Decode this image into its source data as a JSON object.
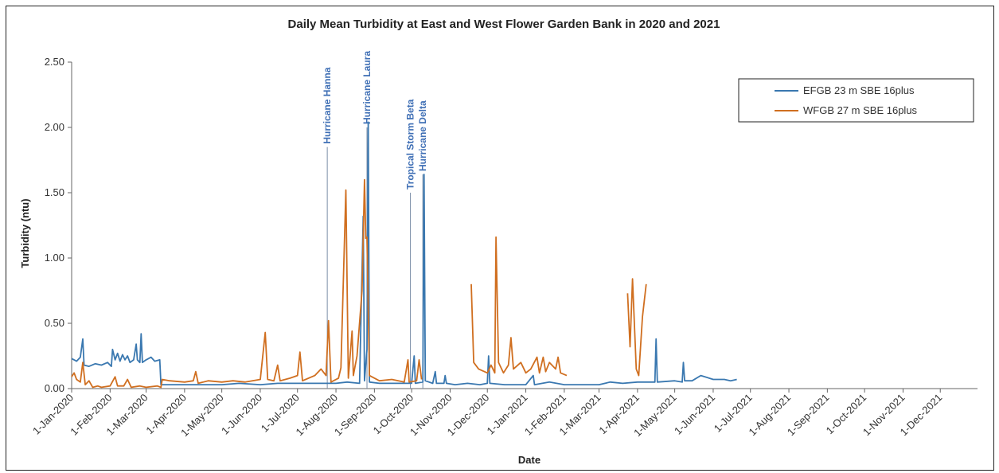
{
  "chart_data": {
    "type": "line",
    "title": "Daily Mean Turbidity at East and West Flower Garden Bank in 2020 and 2021",
    "xlabel": "Date",
    "ylabel": "Turbidity (ntu)",
    "ylim": [
      0,
      2.5
    ],
    "yticks": [
      "0.00",
      "0.50",
      "1.00",
      "1.50",
      "2.00",
      "2.50"
    ],
    "xlim": [
      "2020-01-01",
      "2021-12-31"
    ],
    "xticks": [
      {
        "date": "2020-01-01",
        "label": "1-Jan-2020"
      },
      {
        "date": "2020-02-01",
        "label": "1-Feb-2020"
      },
      {
        "date": "2020-03-01",
        "label": "1-Mar-2020"
      },
      {
        "date": "2020-04-01",
        "label": "1-Apr-2020"
      },
      {
        "date": "2020-05-01",
        "label": "1-May-2020"
      },
      {
        "date": "2020-06-01",
        "label": "1-Jun-2020"
      },
      {
        "date": "2020-07-01",
        "label": "1-Jul-2020"
      },
      {
        "date": "2020-08-01",
        "label": "1-Aug-2020"
      },
      {
        "date": "2020-09-01",
        "label": "1-Sep-2020"
      },
      {
        "date": "2020-10-01",
        "label": "1-Oct-2020"
      },
      {
        "date": "2020-11-01",
        "label": "1-Nov-2020"
      },
      {
        "date": "2020-12-01",
        "label": "1-Dec-2020"
      },
      {
        "date": "2021-01-01",
        "label": "1-Jan-2021"
      },
      {
        "date": "2021-02-01",
        "label": "1-Feb-2021"
      },
      {
        "date": "2021-03-01",
        "label": "1-Mar-2021"
      },
      {
        "date": "2021-04-01",
        "label": "1-Apr-2021"
      },
      {
        "date": "2021-05-01",
        "label": "1-May-2021"
      },
      {
        "date": "2021-06-01",
        "label": "1-Jun-2021"
      },
      {
        "date": "2021-07-01",
        "label": "1-Jul-2021"
      },
      {
        "date": "2021-08-01",
        "label": "1-Aug-2021"
      },
      {
        "date": "2021-09-01",
        "label": "1-Sep-2021"
      },
      {
        "date": "2021-10-01",
        "label": "1-Oct-2021"
      },
      {
        "date": "2021-11-01",
        "label": "1-Nov-2021"
      },
      {
        "date": "2021-12-01",
        "label": "1-Dec-2021"
      }
    ],
    "grid": false,
    "legend_position": "top-right",
    "series": [
      {
        "name": "EFGB 23 m SBE 16plus",
        "color": "#3a78b0",
        "points": [
          [
            "2020-01-01",
            0.23
          ],
          [
            "2020-01-05",
            0.21
          ],
          [
            "2020-01-08",
            0.24
          ],
          [
            "2020-01-10",
            0.38
          ],
          [
            "2020-01-11",
            0.18
          ],
          [
            "2020-01-15",
            0.17
          ],
          [
            "2020-01-20",
            0.19
          ],
          [
            "2020-01-25",
            0.18
          ],
          [
            "2020-01-30",
            0.2
          ],
          [
            "2020-02-02",
            0.17
          ],
          [
            "2020-02-03",
            0.3
          ],
          [
            "2020-02-05",
            0.22
          ],
          [
            "2020-02-07",
            0.27
          ],
          [
            "2020-02-09",
            0.21
          ],
          [
            "2020-02-11",
            0.26
          ],
          [
            "2020-02-13",
            0.22
          ],
          [
            "2020-02-15",
            0.25
          ],
          [
            "2020-02-17",
            0.2
          ],
          [
            "2020-02-20",
            0.22
          ],
          [
            "2020-02-22",
            0.34
          ],
          [
            "2020-02-23",
            0.22
          ],
          [
            "2020-02-25",
            0.2
          ],
          [
            "2020-02-26",
            0.42
          ],
          [
            "2020-02-27",
            0.2
          ],
          [
            "2020-03-01",
            0.22
          ],
          [
            "2020-03-05",
            0.24
          ],
          [
            "2020-03-08",
            0.21
          ],
          [
            "2020-03-12",
            0.22
          ],
          [
            "2020-03-13",
            0.03
          ],
          [
            "2020-03-20",
            0.03
          ],
          [
            "2020-04-01",
            0.03
          ],
          [
            "2020-04-15",
            0.03
          ],
          [
            "2020-05-01",
            0.03
          ],
          [
            "2020-05-15",
            0.04
          ],
          [
            "2020-06-01",
            0.03
          ],
          [
            "2020-06-15",
            0.04
          ],
          [
            "2020-07-01",
            0.04
          ],
          [
            "2020-07-15",
            0.04
          ],
          [
            "2020-07-25",
            0.04
          ],
          [
            "2020-08-01",
            0.04
          ],
          [
            "2020-08-10",
            0.05
          ],
          [
            "2020-08-20",
            0.04
          ],
          [
            "2020-08-23",
            1.32
          ],
          [
            "2020-08-24",
            0.06
          ],
          [
            "2020-08-26",
            0.3
          ],
          [
            "2020-08-27",
            2.04
          ],
          [
            "2020-08-28",
            0.05
          ],
          [
            "2020-09-05",
            0.04
          ],
          [
            "2020-09-15",
            0.04
          ],
          [
            "2020-09-25",
            0.04
          ],
          [
            "2020-10-01",
            0.04
          ],
          [
            "2020-10-03",
            0.25
          ],
          [
            "2020-10-04",
            0.04
          ],
          [
            "2020-10-10",
            0.05
          ],
          [
            "2020-10-11",
            1.64
          ],
          [
            "2020-10-12",
            0.06
          ],
          [
            "2020-10-18",
            0.04
          ],
          [
            "2020-10-20",
            0.13
          ],
          [
            "2020-10-21",
            0.04
          ],
          [
            "2020-10-27",
            0.04
          ],
          [
            "2020-10-28",
            0.1
          ],
          [
            "2020-10-29",
            0.04
          ],
          [
            "2020-11-05",
            0.03
          ],
          [
            "2020-11-15",
            0.04
          ],
          [
            "2020-11-25",
            0.03
          ],
          [
            "2020-12-01",
            0.04
          ],
          [
            "2020-12-02",
            0.25
          ],
          [
            "2020-12-03",
            0.04
          ],
          [
            "2020-12-15",
            0.03
          ],
          [
            "2021-01-01",
            0.03
          ],
          [
            "2021-01-07",
            0.1
          ],
          [
            "2021-01-08",
            0.03
          ],
          [
            "2021-01-20",
            0.05
          ],
          [
            "2021-02-01",
            0.03
          ],
          [
            "2021-02-15",
            0.03
          ],
          [
            "2021-03-01",
            0.03
          ],
          [
            "2021-03-10",
            0.05
          ],
          [
            "2021-03-20",
            0.04
          ],
          [
            "2021-04-01",
            0.05
          ],
          [
            "2021-04-10",
            0.05
          ],
          [
            "2021-04-15",
            0.05
          ],
          [
            "2021-04-16",
            0.38
          ],
          [
            "2021-04-17",
            0.05
          ],
          [
            "2021-05-01",
            0.06
          ],
          [
            "2021-05-07",
            0.05
          ],
          [
            "2021-05-08",
            0.2
          ],
          [
            "2021-05-09",
            0.06
          ],
          [
            "2021-05-15",
            0.06
          ],
          [
            "2021-05-22",
            0.1
          ],
          [
            "2021-06-01",
            0.07
          ],
          [
            "2021-06-10",
            0.07
          ],
          [
            "2021-06-15",
            0.06
          ],
          [
            "2021-06-20",
            0.07
          ]
        ]
      },
      {
        "name": "WFGB 27 m SBE 16plus",
        "color": "#d06f20",
        "segments": [
          [
            [
              "2020-01-01",
              0.09
            ],
            [
              "2020-01-03",
              0.12
            ],
            [
              "2020-01-05",
              0.07
            ],
            [
              "2020-01-08",
              0.05
            ],
            [
              "2020-01-10",
              0.2
            ],
            [
              "2020-01-12",
              0.03
            ],
            [
              "2020-01-15",
              0.06
            ],
            [
              "2020-01-18",
              0.01
            ],
            [
              "2020-01-22",
              0.02
            ],
            [
              "2020-01-25",
              0.01
            ],
            [
              "2020-02-01",
              0.02
            ],
            [
              "2020-02-05",
              0.09
            ],
            [
              "2020-02-07",
              0.02
            ],
            [
              "2020-02-12",
              0.02
            ],
            [
              "2020-02-15",
              0.07
            ],
            [
              "2020-02-18",
              0.01
            ],
            [
              "2020-02-25",
              0.02
            ],
            [
              "2020-03-01",
              0.01
            ],
            [
              "2020-03-10",
              0.02
            ],
            [
              "2020-03-13",
              0.01
            ],
            [
              "2020-03-14",
              0.07
            ],
            [
              "2020-03-20",
              0.06
            ],
            [
              "2020-04-01",
              0.05
            ],
            [
              "2020-04-08",
              0.06
            ],
            [
              "2020-04-10",
              0.13
            ],
            [
              "2020-04-12",
              0.04
            ],
            [
              "2020-04-20",
              0.06
            ],
            [
              "2020-05-01",
              0.05
            ],
            [
              "2020-05-10",
              0.06
            ],
            [
              "2020-05-20",
              0.05
            ],
            [
              "2020-06-01",
              0.07
            ],
            [
              "2020-06-05",
              0.43
            ],
            [
              "2020-06-07",
              0.07
            ],
            [
              "2020-06-12",
              0.06
            ],
            [
              "2020-06-15",
              0.18
            ],
            [
              "2020-06-17",
              0.06
            ],
            [
              "2020-06-25",
              0.08
            ],
            [
              "2020-07-01",
              0.1
            ],
            [
              "2020-07-03",
              0.28
            ],
            [
              "2020-07-05",
              0.06
            ],
            [
              "2020-07-15",
              0.1
            ],
            [
              "2020-07-20",
              0.15
            ],
            [
              "2020-07-24",
              0.1
            ],
            [
              "2020-07-26",
              0.52
            ],
            [
              "2020-07-28",
              0.05
            ],
            [
              "2020-08-03",
              0.08
            ],
            [
              "2020-08-05",
              0.16
            ],
            [
              "2020-08-09",
              1.52
            ],
            [
              "2020-08-11",
              0.08
            ],
            [
              "2020-08-14",
              0.44
            ],
            [
              "2020-08-15",
              0.1
            ],
            [
              "2020-08-18",
              0.25
            ],
            [
              "2020-08-22",
              0.75
            ],
            [
              "2020-08-24",
              1.6
            ],
            [
              "2020-08-25",
              1.15
            ],
            [
              "2020-08-26",
              1.16
            ],
            [
              "2020-08-28",
              0.1
            ],
            [
              "2020-09-05",
              0.06
            ],
            [
              "2020-09-15",
              0.07
            ],
            [
              "2020-09-25",
              0.05
            ],
            [
              "2020-09-28",
              0.22
            ],
            [
              "2020-09-29",
              0.05
            ],
            [
              "2020-10-05",
              0.06
            ],
            [
              "2020-10-07",
              0.22
            ],
            [
              "2020-10-09",
              0.07
            ]
          ],
          [
            [
              "2020-11-18",
              0.8
            ],
            [
              "2020-11-20",
              0.2
            ],
            [
              "2020-11-24",
              0.15
            ],
            [
              "2020-12-01",
              0.12
            ],
            [
              "2020-12-04",
              0.18
            ],
            [
              "2020-12-07",
              0.12
            ],
            [
              "2020-12-08",
              1.16
            ],
            [
              "2020-12-10",
              0.2
            ],
            [
              "2020-12-14",
              0.12
            ],
            [
              "2020-12-18",
              0.18
            ],
            [
              "2020-12-20",
              0.39
            ],
            [
              "2020-12-22",
              0.15
            ],
            [
              "2020-12-28",
              0.2
            ],
            [
              "2021-01-01",
              0.12
            ],
            [
              "2021-01-05",
              0.15
            ],
            [
              "2021-01-10",
              0.24
            ],
            [
              "2021-01-12",
              0.12
            ],
            [
              "2021-01-15",
              0.24
            ],
            [
              "2021-01-17",
              0.13
            ],
            [
              "2021-01-20",
              0.2
            ],
            [
              "2021-01-25",
              0.15
            ],
            [
              "2021-01-27",
              0.24
            ],
            [
              "2021-01-29",
              0.12
            ],
            [
              "2021-02-03",
              0.1
            ]
          ],
          [
            [
              "2021-03-24",
              0.73
            ],
            [
              "2021-03-26",
              0.32
            ],
            [
              "2021-03-28",
              0.84
            ],
            [
              "2021-03-31",
              0.15
            ],
            [
              "2021-04-02",
              0.1
            ],
            [
              "2021-04-05",
              0.55
            ],
            [
              "2021-04-08",
              0.8
            ]
          ]
        ]
      }
    ],
    "annotations": [
      {
        "date": "2020-07-25",
        "top": 1.85,
        "label": "Hurricane Hanna",
        "color": "#3f6fb5"
      },
      {
        "date": "2020-08-26",
        "top": 2.0,
        "label": "Hurricane Laura",
        "color": "#3f6fb5"
      },
      {
        "date": "2020-09-30",
        "top": 1.5,
        "label": "Tropical Storm Beta",
        "color": "#3f6fb5"
      },
      {
        "date": "2020-10-10",
        "top": 1.64,
        "label": "Hurricane Delta",
        "color": "#3f6fb5"
      }
    ]
  }
}
